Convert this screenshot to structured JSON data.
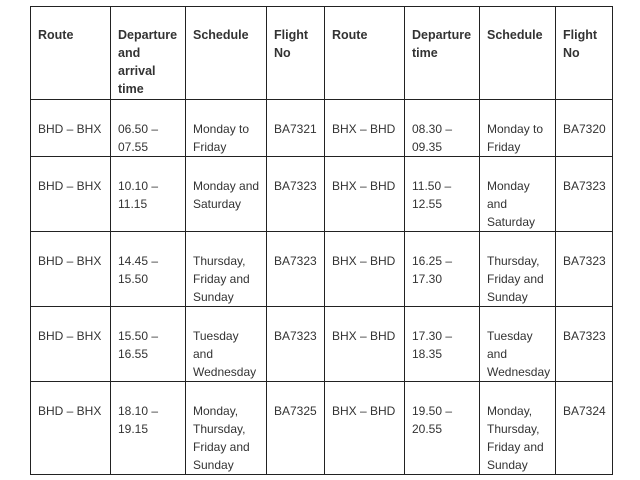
{
  "table": {
    "headers": [
      "Route",
      "Departure and arrival time",
      "Schedule",
      "Flight No",
      "Route",
      "Departure time",
      "Schedule",
      "Flight No"
    ],
    "rows": [
      [
        "BHD – BHX",
        "06.50 – 07.55",
        "Monday to Friday",
        "BA7321",
        "BHX – BHD",
        "08.30 – 09.35",
        "Monday to Friday",
        "BA7320"
      ],
      [
        "BHD – BHX",
        "10.10 – 11.15",
        "Monday and Saturday",
        "BA7323",
        "BHX – BHD",
        "11.50 – 12.55",
        "Monday and Saturday",
        "BA7323"
      ],
      [
        "BHD – BHX",
        "14.45 – 15.50",
        "Thursday, Friday and Sunday",
        "BA7323",
        "BHX – BHD",
        "16.25 – 17.30",
        "Thursday, Friday and Sunday",
        "BA7323"
      ],
      [
        "BHD – BHX",
        "15.50 – 16.55",
        "Tuesday and Wednesday",
        "BA7323",
        "BHX – BHD",
        "17.30 – 18.35",
        "Tuesday and Wednesday",
        "BA7323"
      ],
      [
        "BHD – BHX",
        "18.10 – 19.15",
        "Monday, Thursday, Friday and Sunday",
        "BA7325",
        "BHX – BHD",
        "19.50 – 20.55",
        "Monday, Thursday, Friday and Sunday",
        "BA7324"
      ]
    ]
  }
}
